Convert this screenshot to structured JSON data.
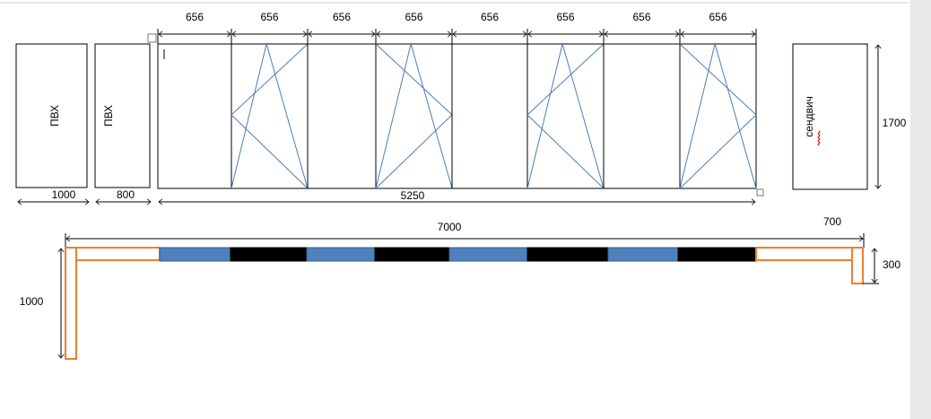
{
  "top_dims": [
    656,
    656,
    656,
    656,
    656,
    656,
    656,
    656
  ],
  "panels": [
    "ПВХ",
    "ПВХ"
  ],
  "panel_dims": [
    1000,
    800
  ],
  "frame_width": 5250,
  "sandwich": {
    "label": "сендвич",
    "height": 1700,
    "width": 700
  },
  "plan": {
    "length": 7000,
    "left_depth": 1000,
    "right_depth": 300
  }
}
